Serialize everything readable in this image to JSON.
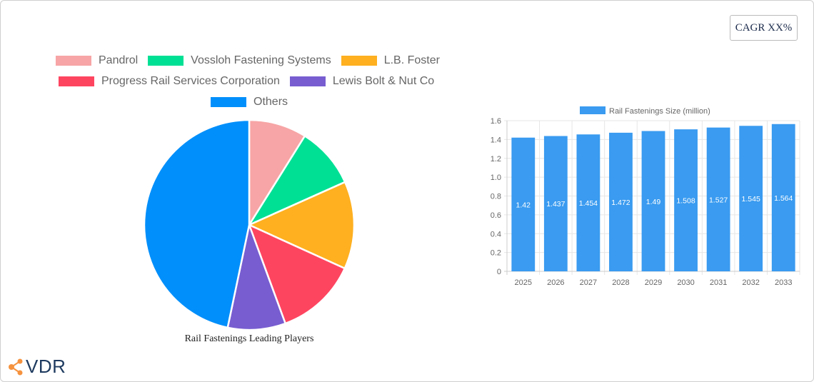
{
  "cagr_badge": "CAGR XX%",
  "logo": {
    "text": "VDR",
    "icon": "share-nodes-icon",
    "icon_color": "#f5923e"
  },
  "pie_legend": [
    {
      "label": "Pandrol",
      "color": "#f7a5a6"
    },
    {
      "label": "Vossloh Fastening Systems",
      "color": "#00e095"
    },
    {
      "label": "L.B. Foster",
      "color": "#feb020"
    },
    {
      "label": "Progress Rail Services Corporation",
      "color": "#fe4560"
    },
    {
      "label": "Lewis Bolt & Nut Co",
      "color": "#775dd0"
    },
    {
      "label": "Others",
      "color": "#008ffb"
    }
  ],
  "pie_title": "Rail Fastenings Leading Players",
  "bar_legend": "Rail Fastenings Size (million)",
  "chart_data": [
    {
      "type": "pie",
      "title": "Rail Fastenings Leading Players",
      "categories": [
        "Pandrol",
        "Vossloh Fastening Systems",
        "L.B. Foster",
        "Progress Rail Services Corporation",
        "Lewis Bolt & Nut Co",
        "Others"
      ],
      "values": [
        8.9,
        9.4,
        13.5,
        12.6,
        8.9,
        46.7
      ],
      "colors": [
        "#f7a5a6",
        "#00e095",
        "#feb020",
        "#fe4560",
        "#775dd0",
        "#008ffb"
      ],
      "legend_position": "top"
    },
    {
      "type": "bar",
      "title": "",
      "series": [
        {
          "name": "Rail Fastenings Size (million)",
          "values": [
            1.42,
            1.437,
            1.454,
            1.472,
            1.49,
            1.508,
            1.527,
            1.545,
            1.564
          ],
          "color": "#3a9bf0"
        }
      ],
      "categories": [
        "2025",
        "2026",
        "2027",
        "2028",
        "2029",
        "2030",
        "2031",
        "2032",
        "2033"
      ],
      "xlabel": "",
      "ylabel": "",
      "ylim": [
        0,
        1.6
      ],
      "yticks": [
        "0",
        "0.2",
        "0.4",
        "0.6",
        "0.8",
        "1.0",
        "1.2",
        "1.4",
        "1.6"
      ],
      "grid": true,
      "legend_position": "top",
      "data_labels": true
    }
  ]
}
